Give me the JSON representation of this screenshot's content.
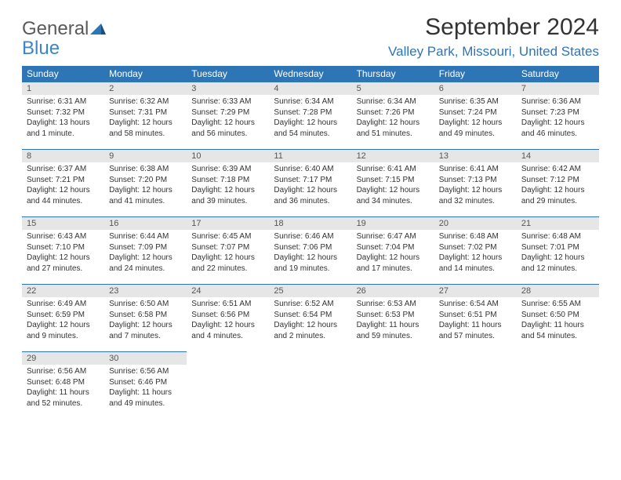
{
  "logo": {
    "word1": "General",
    "word2": "Blue"
  },
  "title": "September 2024",
  "location": "Valley Park, Missouri, United States",
  "colors": {
    "header_bg": "#2e75b6",
    "header_text": "#ffffff",
    "daynum_bg": "#e6e6e6",
    "border": "#2e75b6",
    "logo_gray": "#5a5a5a",
    "logo_blue": "#3d85c6"
  },
  "weekdays": [
    "Sunday",
    "Monday",
    "Tuesday",
    "Wednesday",
    "Thursday",
    "Friday",
    "Saturday"
  ],
  "days": [
    {
      "n": "1",
      "sr": "Sunrise: 6:31 AM",
      "ss": "Sunset: 7:32 PM",
      "dl": "Daylight: 13 hours and 1 minute."
    },
    {
      "n": "2",
      "sr": "Sunrise: 6:32 AM",
      "ss": "Sunset: 7:31 PM",
      "dl": "Daylight: 12 hours and 58 minutes."
    },
    {
      "n": "3",
      "sr": "Sunrise: 6:33 AM",
      "ss": "Sunset: 7:29 PM",
      "dl": "Daylight: 12 hours and 56 minutes."
    },
    {
      "n": "4",
      "sr": "Sunrise: 6:34 AM",
      "ss": "Sunset: 7:28 PM",
      "dl": "Daylight: 12 hours and 54 minutes."
    },
    {
      "n": "5",
      "sr": "Sunrise: 6:34 AM",
      "ss": "Sunset: 7:26 PM",
      "dl": "Daylight: 12 hours and 51 minutes."
    },
    {
      "n": "6",
      "sr": "Sunrise: 6:35 AM",
      "ss": "Sunset: 7:24 PM",
      "dl": "Daylight: 12 hours and 49 minutes."
    },
    {
      "n": "7",
      "sr": "Sunrise: 6:36 AM",
      "ss": "Sunset: 7:23 PM",
      "dl": "Daylight: 12 hours and 46 minutes."
    },
    {
      "n": "8",
      "sr": "Sunrise: 6:37 AM",
      "ss": "Sunset: 7:21 PM",
      "dl": "Daylight: 12 hours and 44 minutes."
    },
    {
      "n": "9",
      "sr": "Sunrise: 6:38 AM",
      "ss": "Sunset: 7:20 PM",
      "dl": "Daylight: 12 hours and 41 minutes."
    },
    {
      "n": "10",
      "sr": "Sunrise: 6:39 AM",
      "ss": "Sunset: 7:18 PM",
      "dl": "Daylight: 12 hours and 39 minutes."
    },
    {
      "n": "11",
      "sr": "Sunrise: 6:40 AM",
      "ss": "Sunset: 7:17 PM",
      "dl": "Daylight: 12 hours and 36 minutes."
    },
    {
      "n": "12",
      "sr": "Sunrise: 6:41 AM",
      "ss": "Sunset: 7:15 PM",
      "dl": "Daylight: 12 hours and 34 minutes."
    },
    {
      "n": "13",
      "sr": "Sunrise: 6:41 AM",
      "ss": "Sunset: 7:13 PM",
      "dl": "Daylight: 12 hours and 32 minutes."
    },
    {
      "n": "14",
      "sr": "Sunrise: 6:42 AM",
      "ss": "Sunset: 7:12 PM",
      "dl": "Daylight: 12 hours and 29 minutes."
    },
    {
      "n": "15",
      "sr": "Sunrise: 6:43 AM",
      "ss": "Sunset: 7:10 PM",
      "dl": "Daylight: 12 hours and 27 minutes."
    },
    {
      "n": "16",
      "sr": "Sunrise: 6:44 AM",
      "ss": "Sunset: 7:09 PM",
      "dl": "Daylight: 12 hours and 24 minutes."
    },
    {
      "n": "17",
      "sr": "Sunrise: 6:45 AM",
      "ss": "Sunset: 7:07 PM",
      "dl": "Daylight: 12 hours and 22 minutes."
    },
    {
      "n": "18",
      "sr": "Sunrise: 6:46 AM",
      "ss": "Sunset: 7:06 PM",
      "dl": "Daylight: 12 hours and 19 minutes."
    },
    {
      "n": "19",
      "sr": "Sunrise: 6:47 AM",
      "ss": "Sunset: 7:04 PM",
      "dl": "Daylight: 12 hours and 17 minutes."
    },
    {
      "n": "20",
      "sr": "Sunrise: 6:48 AM",
      "ss": "Sunset: 7:02 PM",
      "dl": "Daylight: 12 hours and 14 minutes."
    },
    {
      "n": "21",
      "sr": "Sunrise: 6:48 AM",
      "ss": "Sunset: 7:01 PM",
      "dl": "Daylight: 12 hours and 12 minutes."
    },
    {
      "n": "22",
      "sr": "Sunrise: 6:49 AM",
      "ss": "Sunset: 6:59 PM",
      "dl": "Daylight: 12 hours and 9 minutes."
    },
    {
      "n": "23",
      "sr": "Sunrise: 6:50 AM",
      "ss": "Sunset: 6:58 PM",
      "dl": "Daylight: 12 hours and 7 minutes."
    },
    {
      "n": "24",
      "sr": "Sunrise: 6:51 AM",
      "ss": "Sunset: 6:56 PM",
      "dl": "Daylight: 12 hours and 4 minutes."
    },
    {
      "n": "25",
      "sr": "Sunrise: 6:52 AM",
      "ss": "Sunset: 6:54 PM",
      "dl": "Daylight: 12 hours and 2 minutes."
    },
    {
      "n": "26",
      "sr": "Sunrise: 6:53 AM",
      "ss": "Sunset: 6:53 PM",
      "dl": "Daylight: 11 hours and 59 minutes."
    },
    {
      "n": "27",
      "sr": "Sunrise: 6:54 AM",
      "ss": "Sunset: 6:51 PM",
      "dl": "Daylight: 11 hours and 57 minutes."
    },
    {
      "n": "28",
      "sr": "Sunrise: 6:55 AM",
      "ss": "Sunset: 6:50 PM",
      "dl": "Daylight: 11 hours and 54 minutes."
    },
    {
      "n": "29",
      "sr": "Sunrise: 6:56 AM",
      "ss": "Sunset: 6:48 PM",
      "dl": "Daylight: 11 hours and 52 minutes."
    },
    {
      "n": "30",
      "sr": "Sunrise: 6:56 AM",
      "ss": "Sunset: 6:46 PM",
      "dl": "Daylight: 11 hours and 49 minutes."
    }
  ],
  "layout": {
    "first_weekday_index": 0,
    "total_cells": 35
  }
}
